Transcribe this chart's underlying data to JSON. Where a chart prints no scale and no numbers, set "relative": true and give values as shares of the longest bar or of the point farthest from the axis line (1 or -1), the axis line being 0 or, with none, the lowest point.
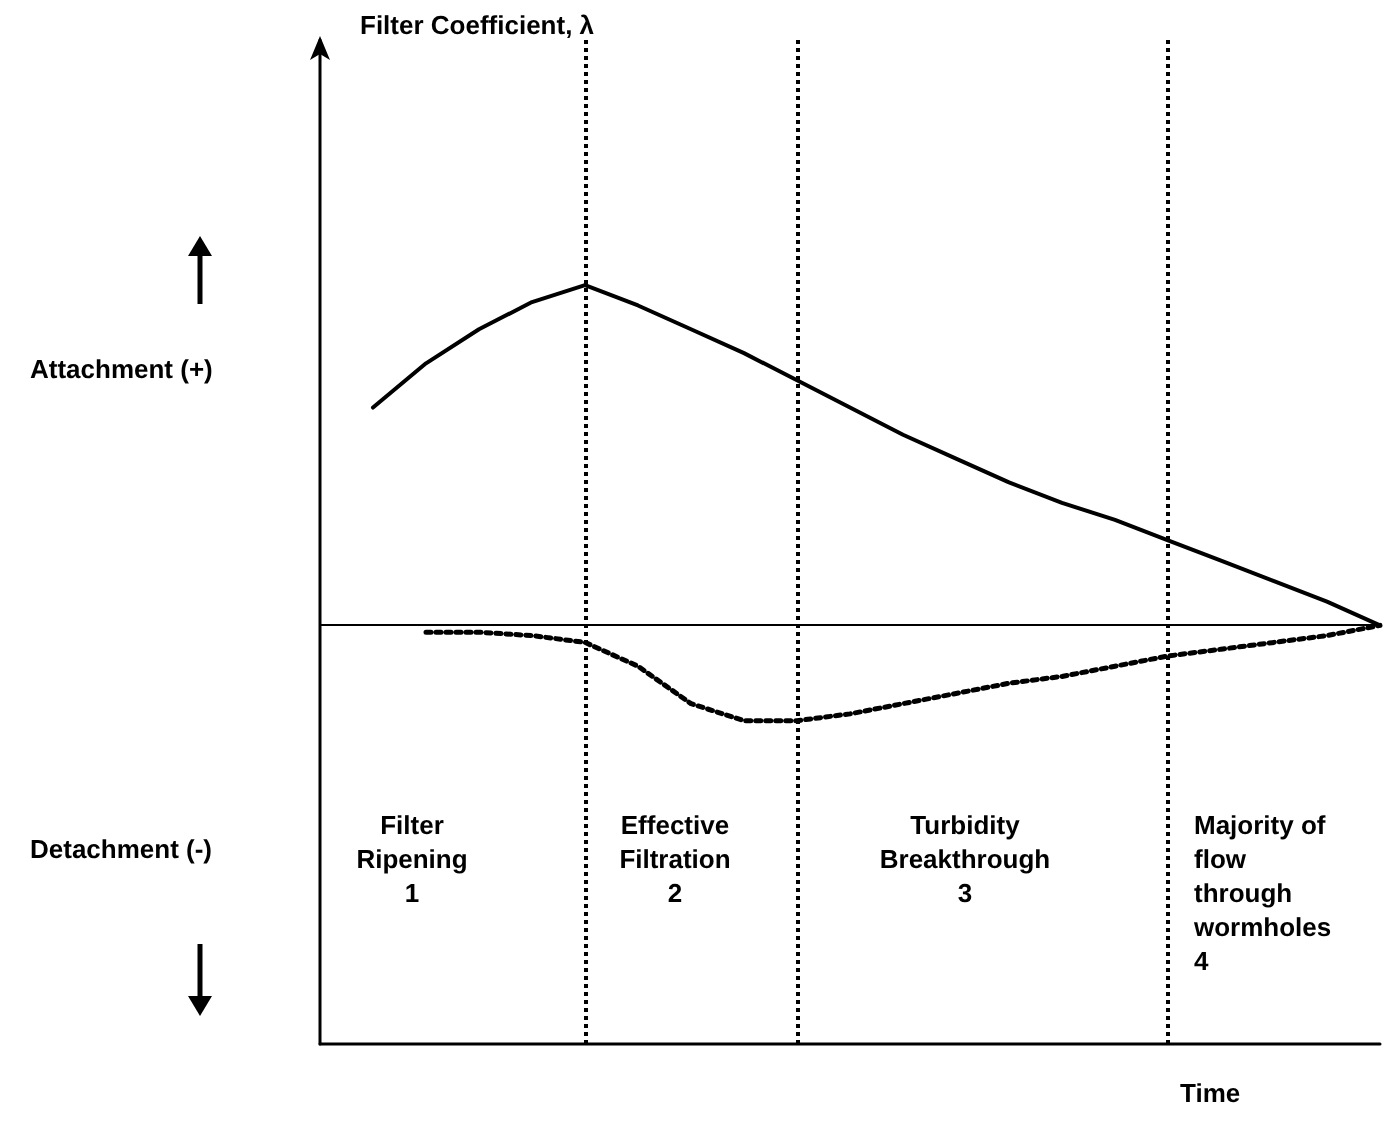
{
  "chart_data": {
    "type": "line",
    "relative": true,
    "marker": "none",
    "grid": "x",
    "categories": [
      null,
      null,
      null,
      null,
      null,
      null,
      null,
      null,
      null,
      null,
      null,
      null,
      null,
      null,
      null,
      null,
      null,
      null,
      null,
      null,
      null
    ],
    "series": [
      {
        "color": "#000000",
        "line_style": "solid",
        "values": [
          null,
          0.64,
          0.77,
          0.87,
          0.95,
          1.0,
          0.94,
          0.87,
          0.8,
          0.72,
          0.64,
          0.56,
          0.49,
          0.42,
          0.36,
          0.31,
          0.25,
          0.19,
          0.13,
          0.07,
          0
        ]
      },
      {
        "color": "#000000",
        "line_style": "dotted",
        "values": [
          null,
          null,
          -0.02,
          -0.02,
          -0.03,
          -0.05,
          -0.12,
          -0.23,
          -0.28,
          -0.28,
          -0.26,
          -0.23,
          -0.2,
          -0.17,
          -0.15,
          -0.12,
          -0.09,
          -0.07,
          -0.05,
          -0.03,
          0
        ]
      }
    ],
    "ref_lines": [
      {
        "axis": "y",
        "value": 0,
        "color": "#000000",
        "line_style": "solid"
      }
    ],
    "annotations": [
      "Attachment (+)",
      "Detachment (-)",
      "Filter\nRipening\n1",
      "Effective\nFiltration\n2",
      "Turbidity\nBreakthrough\n3",
      "Majority of\nflow\nthrough\nwormholes\n4",
      "Filter Coefficient, λ",
      "Time"
    ]
  }
}
